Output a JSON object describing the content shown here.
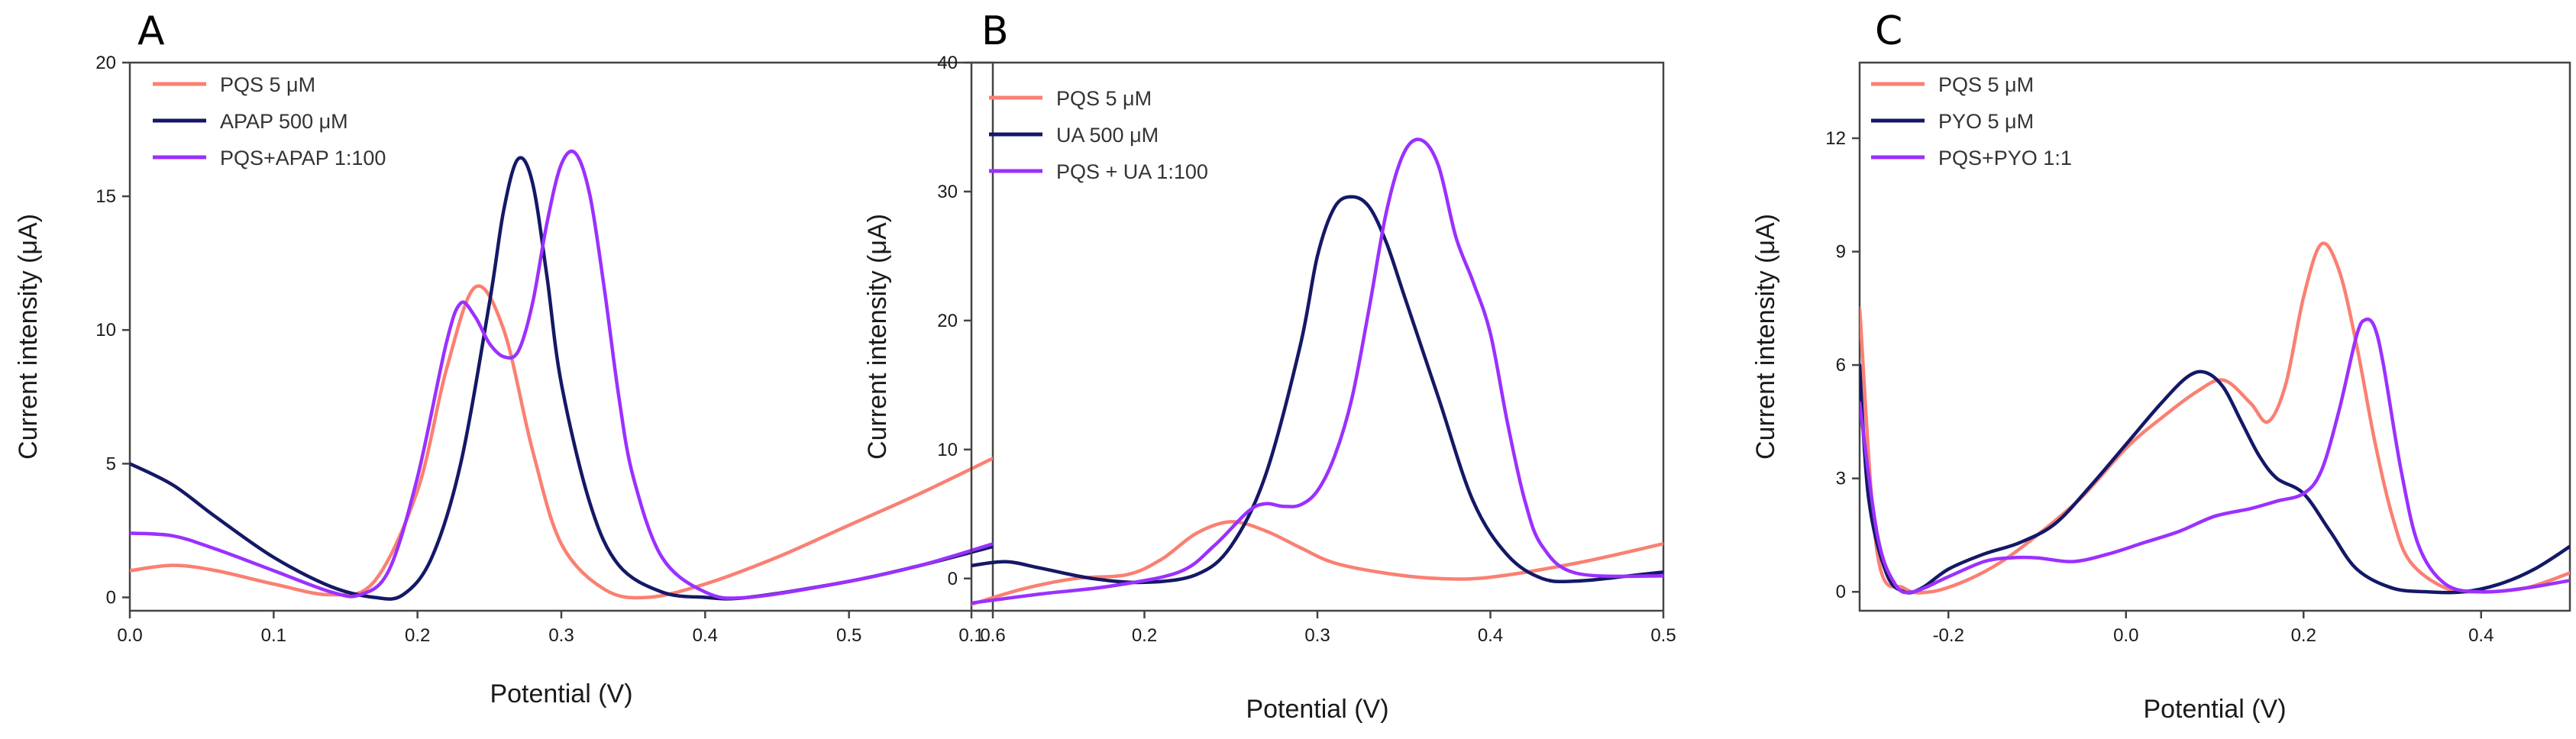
{
  "colors": {
    "pqs": "#FA8072",
    "other": "#141866",
    "mix": "#9B30FF"
  },
  "chart_data": [
    {
      "type": "line",
      "panel_letter": "A",
      "xlabel": "Potential (V)",
      "ylabel": "Current intensity (μA)",
      "xlim": [
        0.0,
        0.6
      ],
      "ylim": [
        -0.5,
        20
      ],
      "xticks": [
        "0.0",
        "0.1",
        "0.2",
        "0.3",
        "0.4",
        "0.5",
        "0.6"
      ],
      "yticks": [
        "0",
        "5",
        "10",
        "15",
        "20"
      ],
      "series": [
        {
          "name": "PQS 5 μM",
          "color_key": "pqs",
          "x": [
            0.0,
            0.03,
            0.06,
            0.1,
            0.14,
            0.17,
            0.2,
            0.22,
            0.24,
            0.26,
            0.28,
            0.3,
            0.33,
            0.36,
            0.4,
            0.45,
            0.5,
            0.55,
            0.6
          ],
          "y": [
            1.0,
            1.2,
            1.0,
            0.5,
            0.1,
            0.6,
            4.0,
            8.5,
            11.6,
            10.0,
            5.5,
            2.0,
            0.3,
            0.0,
            0.5,
            1.5,
            2.7,
            3.9,
            5.2
          ]
        },
        {
          "name": "APAP 500 μM",
          "color_key": "other",
          "x": [
            0.0,
            0.03,
            0.06,
            0.1,
            0.14,
            0.17,
            0.19,
            0.21,
            0.23,
            0.25,
            0.26,
            0.27,
            0.28,
            0.29,
            0.3,
            0.32,
            0.34,
            0.37,
            0.4,
            0.43,
            0.5,
            0.55,
            0.6
          ],
          "y": [
            5.0,
            4.2,
            3.0,
            1.5,
            0.4,
            0.0,
            0.1,
            1.5,
            5.0,
            11.0,
            14.5,
            16.4,
            15.5,
            12.0,
            8.0,
            3.5,
            1.2,
            0.2,
            0.0,
            0.0,
            0.6,
            1.2,
            1.9
          ]
        },
        {
          "name": "PQS+APAP 1:100",
          "color_key": "mix",
          "x": [
            0.0,
            0.03,
            0.06,
            0.1,
            0.14,
            0.16,
            0.18,
            0.2,
            0.22,
            0.23,
            0.24,
            0.25,
            0.26,
            0.27,
            0.28,
            0.29,
            0.3,
            0.31,
            0.32,
            0.33,
            0.34,
            0.35,
            0.37,
            0.4,
            0.43,
            0.5,
            0.55,
            0.6
          ],
          "y": [
            2.4,
            2.3,
            1.8,
            1.0,
            0.2,
            0.1,
            1.0,
            4.5,
            9.5,
            11.0,
            10.5,
            9.5,
            9.0,
            9.2,
            11.0,
            14.0,
            16.2,
            16.6,
            15.0,
            11.5,
            7.5,
            4.5,
            1.5,
            0.2,
            0.0,
            0.6,
            1.2,
            2.0
          ]
        }
      ],
      "legend": "top-left"
    },
    {
      "type": "line",
      "panel_letter": "B",
      "xlabel": "Potential (V)",
      "ylabel": "Current intensity (μA)",
      "xlim": [
        0.1,
        0.5
      ],
      "ylim": [
        -2.5,
        40
      ],
      "xticks": [
        "0.1",
        "0.2",
        "0.3",
        "0.4",
        "0.5"
      ],
      "yticks": [
        "0",
        "10",
        "20",
        "30",
        "40"
      ],
      "series": [
        {
          "name": "PQS 5 μM",
          "color_key": "pqs",
          "x": [
            0.1,
            0.13,
            0.16,
            0.19,
            0.21,
            0.23,
            0.25,
            0.27,
            0.29,
            0.31,
            0.34,
            0.37,
            0.4,
            0.45,
            0.5
          ],
          "y": [
            -2.0,
            -0.8,
            0.0,
            0.3,
            1.5,
            3.5,
            4.4,
            3.7,
            2.4,
            1.2,
            0.4,
            0.0,
            0.1,
            1.2,
            2.7
          ]
        },
        {
          "name": "UA 500 μM",
          "color_key": "other",
          "x": [
            0.1,
            0.12,
            0.14,
            0.17,
            0.2,
            0.23,
            0.25,
            0.27,
            0.29,
            0.3,
            0.31,
            0.32,
            0.33,
            0.34,
            0.35,
            0.37,
            0.39,
            0.41,
            0.43,
            0.45,
            0.48,
            0.5
          ],
          "y": [
            1.0,
            1.3,
            0.8,
            0.0,
            -0.3,
            0.3,
            2.5,
            8.0,
            18.0,
            25.0,
            28.8,
            29.6,
            28.8,
            26.0,
            22.0,
            14.0,
            6.0,
            1.8,
            0.0,
            -0.2,
            0.2,
            0.5
          ]
        },
        {
          "name": "PQS + UA 1:100",
          "color_key": "mix",
          "x": [
            0.1,
            0.14,
            0.18,
            0.22,
            0.24,
            0.26,
            0.27,
            0.28,
            0.29,
            0.3,
            0.31,
            0.32,
            0.33,
            0.34,
            0.35,
            0.36,
            0.37,
            0.38,
            0.39,
            0.4,
            0.41,
            0.42,
            0.43,
            0.45,
            0.5
          ],
          "y": [
            -1.9,
            -1.2,
            -0.6,
            0.5,
            2.5,
            5.2,
            5.8,
            5.6,
            5.7,
            6.8,
            9.5,
            14.0,
            21.0,
            28.5,
            33.0,
            34.0,
            32.0,
            26.5,
            23.0,
            19.0,
            12.0,
            6.0,
            2.5,
            0.4,
            0.2
          ]
        }
      ],
      "legend": "top-left"
    },
    {
      "type": "line",
      "panel_letter": "C",
      "xlabel": "Potential (V)",
      "ylabel": "Current intensity (μA)",
      "xlim": [
        -0.3,
        0.5
      ],
      "ylim": [
        -0.5,
        14
      ],
      "xticks": [
        "-0.2",
        "0.0",
        "0.2",
        "0.4"
      ],
      "yticks": [
        "0",
        "3",
        "6",
        "9",
        "12"
      ],
      "series": [
        {
          "name": "PQS 5 μM",
          "color_key": "pqs",
          "x": [
            -0.3,
            -0.28,
            -0.25,
            -0.22,
            -0.18,
            -0.14,
            -0.1,
            -0.05,
            0.0,
            0.04,
            0.08,
            0.11,
            0.14,
            0.16,
            0.18,
            0.2,
            0.22,
            0.24,
            0.26,
            0.28,
            0.3,
            0.32,
            0.36,
            0.4,
            0.45,
            0.5
          ],
          "y": [
            7.5,
            1.0,
            0.1,
            0.0,
            0.3,
            0.8,
            1.5,
            2.5,
            3.8,
            4.6,
            5.3,
            5.6,
            5.0,
            4.5,
            5.5,
            7.8,
            9.2,
            8.5,
            6.5,
            4.0,
            2.0,
            0.8,
            0.1,
            0.0,
            0.1,
            0.5
          ]
        },
        {
          "name": "PYO 5 μM",
          "color_key": "other",
          "x": [
            -0.3,
            -0.29,
            -0.27,
            -0.25,
            -0.23,
            -0.2,
            -0.16,
            -0.12,
            -0.08,
            -0.04,
            0.0,
            0.04,
            0.07,
            0.09,
            0.11,
            0.13,
            0.15,
            0.17,
            0.2,
            0.23,
            0.26,
            0.3,
            0.34,
            0.38,
            0.42,
            0.46,
            0.5
          ],
          "y": [
            6.0,
            2.5,
            0.5,
            0.0,
            0.1,
            0.6,
            1.0,
            1.3,
            1.8,
            2.8,
            3.9,
            5.0,
            5.7,
            5.8,
            5.4,
            4.5,
            3.6,
            3.0,
            2.6,
            1.6,
            0.6,
            0.1,
            0.0,
            0.0,
            0.2,
            0.6,
            1.2
          ]
        },
        {
          "name": "PQS+PYO 1:1",
          "color_key": "mix",
          "x": [
            -0.3,
            -0.28,
            -0.26,
            -0.24,
            -0.2,
            -0.16,
            -0.13,
            -0.1,
            -0.06,
            -0.02,
            0.02,
            0.06,
            0.1,
            0.14,
            0.17,
            0.2,
            0.22,
            0.24,
            0.26,
            0.27,
            0.28,
            0.29,
            0.31,
            0.33,
            0.36,
            0.4,
            0.45,
            0.5
          ],
          "y": [
            5.0,
            1.5,
            0.2,
            0.0,
            0.4,
            0.8,
            0.9,
            0.9,
            0.8,
            1.0,
            1.3,
            1.6,
            2.0,
            2.2,
            2.4,
            2.6,
            3.2,
            4.8,
            6.8,
            7.2,
            7.0,
            6.0,
            3.2,
            1.2,
            0.2,
            0.0,
            0.1,
            0.3
          ]
        }
      ],
      "legend": "top-left"
    }
  ]
}
